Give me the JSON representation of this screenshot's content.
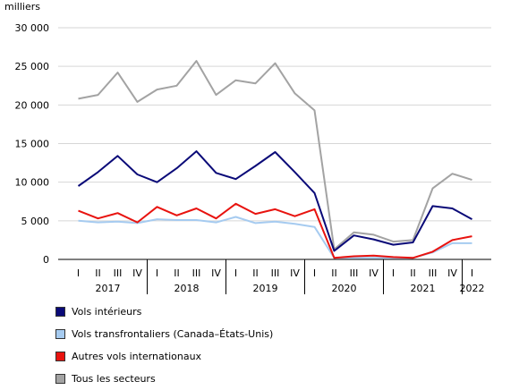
{
  "chart_data": {
    "type": "line",
    "ylabel": "milliers",
    "ylim": [
      0,
      30000
    ],
    "yticks": [
      "0",
      "5 000",
      "10 000",
      "15 000",
      "20 000",
      "25 000",
      "30 000"
    ],
    "quarters": [
      "I",
      "II",
      "III",
      "IV",
      "I",
      "II",
      "III",
      "IV",
      "I",
      "II",
      "III",
      "IV",
      "I",
      "II",
      "III",
      "IV",
      "I",
      "II",
      "III",
      "IV",
      "I"
    ],
    "years": [
      {
        "label": "2017",
        "start": 0,
        "end": 3
      },
      {
        "label": "2018",
        "start": 4,
        "end": 7
      },
      {
        "label": "2019",
        "start": 8,
        "end": 11
      },
      {
        "label": "2020",
        "start": 12,
        "end": 15
      },
      {
        "label": "2021",
        "start": 16,
        "end": 19
      },
      {
        "label": "2022",
        "start": 20,
        "end": 20
      }
    ],
    "grid": true,
    "legend_position": "bottom-left",
    "series": [
      {
        "name": "Vols intérieurs",
        "color": "#0a0a78",
        "values": [
          9500,
          11300,
          13400,
          11000,
          10000,
          11800,
          14000,
          11200,
          10400,
          12100,
          13900,
          11300,
          8600,
          1100,
          3100,
          2600,
          1900,
          2200,
          6900,
          6600,
          5200
        ]
      },
      {
        "name": "Vols transfrontaliers (Canada–États-Unis)",
        "color": "#a6cbf0",
        "values": [
          5000,
          4800,
          4900,
          4700,
          5200,
          5100,
          5100,
          4800,
          5500,
          4700,
          4900,
          4600,
          4200,
          200,
          200,
          200,
          200,
          200,
          900,
          2100,
          2100
        ]
      },
      {
        "name": "Autres vols internationaux",
        "color": "#e8130f",
        "values": [
          6300,
          5300,
          6000,
          4800,
          6800,
          5700,
          6600,
          5300,
          7200,
          5900,
          6500,
          5600,
          6500,
          200,
          400,
          500,
          300,
          200,
          1000,
          2500,
          3000
        ]
      },
      {
        "name": "Tous les secteurs",
        "color": "#a3a3a3",
        "values": [
          20800,
          21300,
          24200,
          20400,
          22000,
          22500,
          25700,
          21300,
          23200,
          22800,
          25400,
          21500,
          19300,
          1300,
          3500,
          3200,
          2300,
          2500,
          9200,
          11100,
          10300
        ]
      }
    ]
  }
}
